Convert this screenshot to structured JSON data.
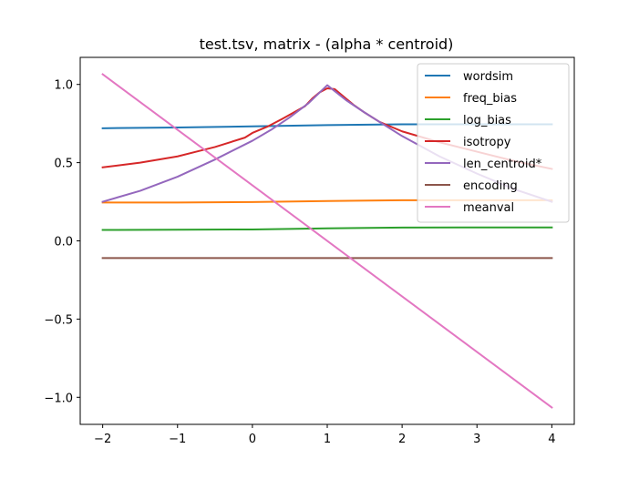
{
  "chart_data": {
    "type": "line",
    "title": "test.tsv, matrix - (alpha * centroid)",
    "xlabel": "",
    "ylabel": "",
    "xlim": [
      -2.3,
      4.3
    ],
    "ylim": [
      -1.173,
      1.173
    ],
    "xticks": [
      -2,
      -1,
      0,
      1,
      2,
      3,
      4
    ],
    "xtick_labels": [
      "−2",
      "−1",
      "0",
      "1",
      "2",
      "3",
      "4"
    ],
    "yticks": [
      -1.0,
      -0.5,
      0.0,
      0.5,
      1.0
    ],
    "ytick_labels": [
      "−1.0",
      "−0.5",
      "0.0",
      "0.5",
      "1.0"
    ],
    "grid": false,
    "legend_position": "top-right",
    "series": [
      {
        "name": "wordsim",
        "color": "#1f77b4",
        "x": [
          -2,
          -1,
          0,
          1,
          2,
          3,
          4
        ],
        "y": [
          0.72,
          0.725,
          0.732,
          0.74,
          0.745,
          0.745,
          0.745
        ]
      },
      {
        "name": "freq_bias",
        "color": "#ff7f0e",
        "x": [
          -2,
          -1,
          0,
          1,
          2,
          3,
          4
        ],
        "y": [
          0.245,
          0.245,
          0.248,
          0.255,
          0.26,
          0.26,
          0.26
        ]
      },
      {
        "name": "log_bias",
        "color": "#2ca02c",
        "x": [
          -2,
          -1,
          0,
          1,
          2,
          3,
          4
        ],
        "y": [
          0.07,
          0.071,
          0.073,
          0.08,
          0.085,
          0.086,
          0.086
        ]
      },
      {
        "name": "isotropy",
        "color": "#d62728",
        "x": [
          -2,
          -1.5,
          -1,
          -0.75,
          -0.5,
          -0.3,
          -0.1,
          0,
          0.2,
          0.4,
          0.55,
          0.7,
          0.8,
          0.9,
          1.0,
          1.1,
          1.2,
          1.35,
          1.5,
          1.7,
          2.0,
          2.5,
          3.0,
          3.5,
          4.0
        ],
        "y": [
          0.47,
          0.5,
          0.54,
          0.57,
          0.6,
          0.63,
          0.66,
          0.69,
          0.73,
          0.78,
          0.82,
          0.86,
          0.91,
          0.95,
          0.975,
          0.97,
          0.93,
          0.87,
          0.82,
          0.76,
          0.7,
          0.63,
          0.57,
          0.51,
          0.46
        ]
      },
      {
        "name": "len_centroid*",
        "color": "#9467bd",
        "x": [
          -2,
          -1.5,
          -1,
          -0.5,
          0,
          0.25,
          0.5,
          0.75,
          1,
          1.25,
          1.5,
          2,
          2.5,
          3,
          3.5,
          4
        ],
        "y": [
          0.25,
          0.32,
          0.41,
          0.52,
          0.64,
          0.71,
          0.79,
          0.88,
          0.995,
          0.9,
          0.82,
          0.67,
          0.54,
          0.43,
          0.33,
          0.25
        ]
      },
      {
        "name": "encoding",
        "color": "#8c564b",
        "x": [
          -2,
          4
        ],
        "y": [
          -0.11,
          -0.11
        ]
      },
      {
        "name": "meanval",
        "color": "#e377c2",
        "x": [
          -2,
          4
        ],
        "y": [
          1.065,
          -1.065
        ]
      }
    ]
  }
}
